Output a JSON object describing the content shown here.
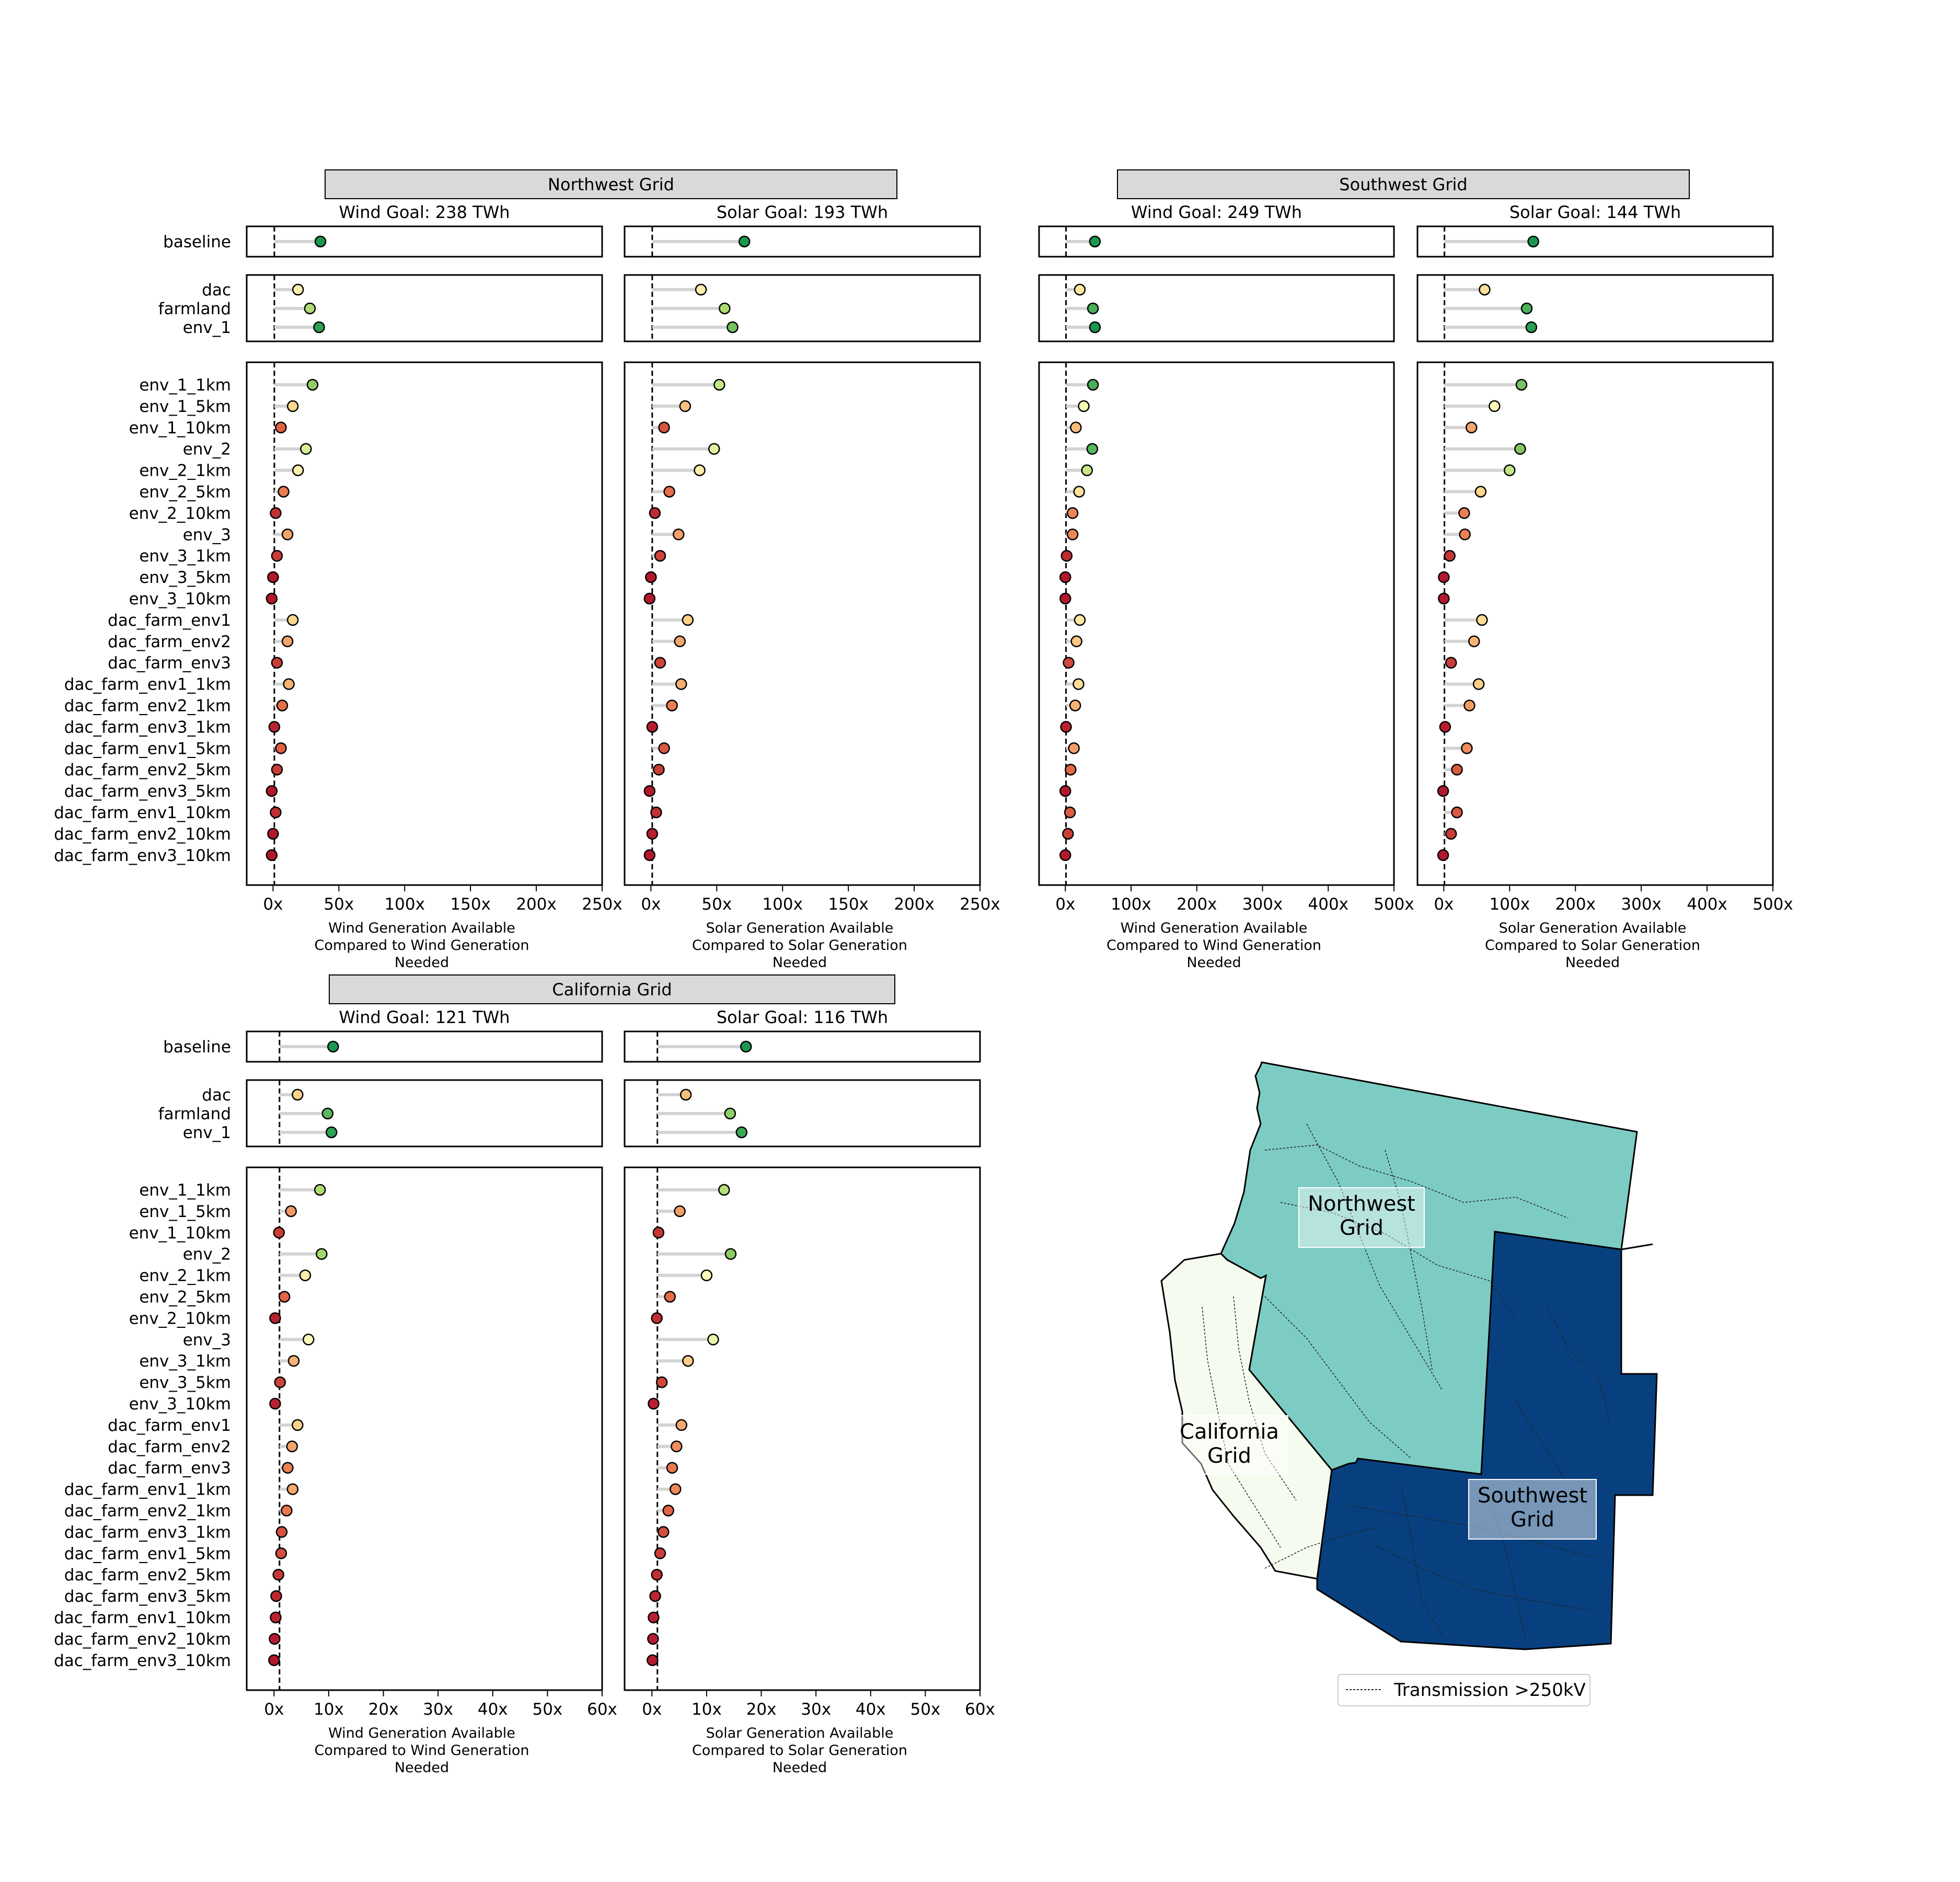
{
  "regions": [
    {
      "title": "Northwest Grid"
    },
    {
      "title": "Southwest Grid"
    },
    {
      "title": "California Grid"
    }
  ],
  "chart_data": [
    {
      "type": "scatter",
      "grid": "Northwest Grid",
      "title": "Wind Goal: 238 TWh",
      "xlabel": [
        "Wind Generation Available",
        "Compared to Wind Generation",
        "Needed"
      ],
      "xlim": [
        -20,
        250
      ],
      "xticks": [
        0,
        50,
        100,
        150,
        200,
        250
      ],
      "xticklabels": [
        "0x",
        "50x",
        "100x",
        "150x",
        "200x",
        "250x"
      ],
      "reference_line": 1,
      "groups": [
        {
          "categories": [
            "baseline"
          ],
          "values": [
            36
          ]
        },
        {
          "categories": [
            "dac",
            "farmland",
            "env_1"
          ],
          "values": [
            19,
            28,
            35
          ]
        },
        {
          "categories": [
            "env_1_1km",
            "env_1_5km",
            "env_1_10km",
            "env_2",
            "env_2_1km",
            "env_2_5km",
            "env_2_10km",
            "env_3",
            "env_3_1km",
            "env_3_5km",
            "env_3_10km",
            "dac_farm_env1",
            "dac_farm_env2",
            "dac_farm_env3",
            "dac_farm_env1_1km",
            "dac_farm_env2_1km",
            "dac_farm_env3_1km",
            "dac_farm_env1_5km",
            "dac_farm_env2_5km",
            "dac_farm_env3_5km",
            "dac_farm_env1_10km",
            "dac_farm_env2_10km",
            "dac_farm_env3_10km"
          ],
          "values": [
            30,
            15,
            6,
            25,
            19,
            8,
            2,
            11,
            3,
            0,
            -1,
            15,
            11,
            3,
            12,
            7,
            1,
            6,
            3,
            -1,
            2,
            0,
            -1
          ]
        }
      ]
    },
    {
      "type": "scatter",
      "grid": "Northwest Grid",
      "title": "Solar Goal: 193 TWh",
      "xlabel": [
        "Solar Generation Available",
        "Compared to Solar Generation",
        "Needed"
      ],
      "xlim": [
        -20,
        250
      ],
      "xticks": [
        0,
        50,
        100,
        150,
        200,
        250
      ],
      "xticklabels": [
        "0x",
        "50x",
        "100x",
        "150x",
        "200x",
        "250x"
      ],
      "reference_line": 1,
      "groups": [
        {
          "categories": [
            "baseline"
          ],
          "values": [
            71
          ]
        },
        {
          "categories": [
            "dac",
            "farmland",
            "env_1"
          ],
          "values": [
            38,
            56,
            62
          ]
        },
        {
          "categories": [
            "env_1_1km",
            "env_1_5km",
            "env_1_10km",
            "env_2",
            "env_2_1km",
            "env_2_5km",
            "env_2_10km",
            "env_3",
            "env_3_1km",
            "env_3_5km",
            "env_3_10km",
            "dac_farm_env1",
            "dac_farm_env2",
            "dac_farm_env3",
            "dac_farm_env1_1km",
            "dac_farm_env2_1km",
            "dac_farm_env3_1km",
            "dac_farm_env1_5km",
            "dac_farm_env2_5km",
            "dac_farm_env3_5km",
            "dac_farm_env1_10km",
            "dac_farm_env2_10km",
            "dac_farm_env3_10km"
          ],
          "values": [
            52,
            26,
            10,
            48,
            37,
            14,
            3,
            21,
            7,
            0,
            -1,
            28,
            22,
            7,
            23,
            16,
            1,
            10,
            6,
            -1,
            4,
            1,
            -1
          ]
        }
      ]
    },
    {
      "type": "scatter",
      "grid": "Southwest Grid",
      "title": "Wind Goal: 249 TWh",
      "xlabel": [
        "Wind Generation Available",
        "Compared to Wind Generation",
        "Needed"
      ],
      "xlim": [
        -40,
        500
      ],
      "xticks": [
        0,
        100,
        200,
        300,
        400,
        500
      ],
      "xticklabels": [
        "0x",
        "100x",
        "200x",
        "300x",
        "400x",
        "500x"
      ],
      "reference_line": 1,
      "groups": [
        {
          "categories": [
            "baseline"
          ],
          "values": [
            45
          ]
        },
        {
          "categories": [
            "dac",
            "farmland",
            "env_1"
          ],
          "values": [
            22,
            42,
            45
          ]
        },
        {
          "categories": [
            "env_1_1km",
            "env_1_5km",
            "env_1_10km",
            "env_2",
            "env_2_1km",
            "env_2_5km",
            "env_2_10km",
            "env_3",
            "env_3_1km",
            "env_3_5km",
            "env_3_10km",
            "dac_farm_env1",
            "dac_farm_env2",
            "dac_farm_env3",
            "dac_farm_env1_1km",
            "dac_farm_env2_1km",
            "dac_farm_env3_1km",
            "dac_farm_env1_5km",
            "dac_farm_env2_5km",
            "dac_farm_env3_5km",
            "dac_farm_env1_10km",
            "dac_farm_env2_10km",
            "dac_farm_env3_10km"
          ],
          "values": [
            42,
            28,
            16,
            41,
            33,
            21,
            11,
            11,
            2,
            0,
            0,
            22,
            17,
            5,
            20,
            15,
            1,
            13,
            8,
            0,
            7,
            4,
            0
          ]
        }
      ]
    },
    {
      "type": "scatter",
      "grid": "Southwest Grid",
      "title": "Solar Goal: 144 TWh",
      "xlabel": [
        "Solar Generation Available",
        "Compared to Solar Generation",
        "Needed"
      ],
      "xlim": [
        -40,
        500
      ],
      "xticks": [
        0,
        100,
        200,
        300,
        400,
        500
      ],
      "xticklabels": [
        "0x",
        "100x",
        "200x",
        "300x",
        "400x",
        "500x"
      ],
      "reference_line": 1,
      "groups": [
        {
          "categories": [
            "baseline"
          ],
          "values": [
            136
          ]
        },
        {
          "categories": [
            "dac",
            "farmland",
            "env_1"
          ],
          "values": [
            62,
            126,
            133
          ]
        },
        {
          "categories": [
            "env_1_1km",
            "env_1_5km",
            "env_1_10km",
            "env_2",
            "env_2_1km",
            "env_2_5km",
            "env_2_10km",
            "env_3",
            "env_3_1km",
            "env_3_5km",
            "env_3_10km",
            "dac_farm_env1",
            "dac_farm_env2",
            "dac_farm_env3",
            "dac_farm_env1_1km",
            "dac_farm_env2_1km",
            "dac_farm_env3_1km",
            "dac_farm_env1_5km",
            "dac_farm_env2_5km",
            "dac_farm_env3_5km",
            "dac_farm_env1_10km",
            "dac_farm_env2_10km",
            "dac_farm_env3_10km"
          ],
          "values": [
            118,
            77,
            42,
            116,
            100,
            56,
            31,
            32,
            9,
            0,
            0,
            58,
            46,
            11,
            53,
            39,
            2,
            35,
            20,
            -1,
            20,
            11,
            -1
          ]
        }
      ]
    },
    {
      "type": "scatter",
      "grid": "California Grid",
      "title": "Wind Goal: 121 TWh",
      "xlabel": [
        "Wind Generation Available",
        "Compared to Wind Generation",
        "Needed"
      ],
      "xlim": [
        -5,
        60
      ],
      "xticks": [
        0,
        10,
        20,
        30,
        40,
        50,
        60
      ],
      "xticklabels": [
        "0x",
        "10x",
        "20x",
        "30x",
        "40x",
        "50x",
        "60x"
      ],
      "reference_line": 1,
      "groups": [
        {
          "categories": [
            "baseline"
          ],
          "values": [
            10.8
          ]
        },
        {
          "categories": [
            "dac",
            "farmland",
            "env_1"
          ],
          "values": [
            4.3,
            9.8,
            10.5
          ]
        },
        {
          "categories": [
            "env_1_1km",
            "env_1_5km",
            "env_1_10km",
            "env_2",
            "env_2_1km",
            "env_2_5km",
            "env_2_10km",
            "env_3",
            "env_3_1km",
            "env_3_5km",
            "env_3_10km",
            "dac_farm_env1",
            "dac_farm_env2",
            "dac_farm_env3",
            "dac_farm_env1_1km",
            "dac_farm_env2_1km",
            "dac_farm_env3_1km",
            "dac_farm_env1_5km",
            "dac_farm_env2_5km",
            "dac_farm_env3_5km",
            "dac_farm_env1_10km",
            "dac_farm_env2_10km",
            "dac_farm_env3_10km"
          ],
          "values": [
            8.4,
            3.1,
            0.9,
            8.7,
            5.7,
            1.9,
            0.2,
            6.3,
            3.6,
            1.1,
            0.2,
            4.3,
            3.3,
            2.5,
            3.4,
            2.3,
            1.4,
            1.3,
            0.8,
            0.4,
            0.3,
            0.1,
            0.0
          ]
        }
      ]
    },
    {
      "type": "scatter",
      "grid": "California Grid",
      "title": "Solar Goal: 116 TWh",
      "xlabel": [
        "Solar Generation Available",
        "Compared to Solar Generation",
        "Needed"
      ],
      "xlim": [
        -5,
        60
      ],
      "xticks": [
        0,
        10,
        20,
        30,
        40,
        50,
        60
      ],
      "xticklabels": [
        "0x",
        "10x",
        "20x",
        "30x",
        "40x",
        "50x",
        "60x"
      ],
      "reference_line": 1,
      "groups": [
        {
          "categories": [
            "baseline"
          ],
          "values": [
            17.2
          ]
        },
        {
          "categories": [
            "dac",
            "farmland",
            "env_1"
          ],
          "values": [
            6.2,
            14.3,
            16.4
          ]
        },
        {
          "categories": [
            "env_1_1km",
            "env_1_5km",
            "env_1_10km",
            "env_2",
            "env_2_1km",
            "env_2_5km",
            "env_2_10km",
            "env_3",
            "env_3_1km",
            "env_3_5km",
            "env_3_10km",
            "dac_farm_env1",
            "dac_farm_env2",
            "dac_farm_env3",
            "dac_farm_env1_1km",
            "dac_farm_env2_1km",
            "dac_farm_env3_1km",
            "dac_farm_env1_5km",
            "dac_farm_env2_5km",
            "dac_farm_env3_5km",
            "dac_farm_env1_10km",
            "dac_farm_env2_10km",
            "dac_farm_env3_10km"
          ],
          "values": [
            13.2,
            5.1,
            1.2,
            14.4,
            10.0,
            3.3,
            0.9,
            11.2,
            6.6,
            1.8,
            0.3,
            5.4,
            4.5,
            3.7,
            4.3,
            3.0,
            2.1,
            1.5,
            0.9,
            0.6,
            0.3,
            0.2,
            0.1
          ]
        }
      ]
    }
  ],
  "map": {
    "legend_label": "Transmission >250kV",
    "labels": [
      {
        "id": "northwest",
        "lines": [
          "Northwest",
          "Grid"
        ]
      },
      {
        "id": "california",
        "lines": [
          "California",
          "Grid"
        ]
      },
      {
        "id": "southwest",
        "lines": [
          "Southwest",
          "Grid"
        ]
      }
    ],
    "colors": {
      "northwest": "#7dccc3",
      "california": "#f6fbef",
      "southwest": "#08407f"
    }
  },
  "colors": {
    "dot_gradient": [
      "#b2182b",
      "#e7704a",
      "#fdd38a",
      "#ffffbf",
      "#a6d96a",
      "#1a9850"
    ],
    "stem": "#d3d3d3",
    "title_box": "#d9d9d9"
  }
}
